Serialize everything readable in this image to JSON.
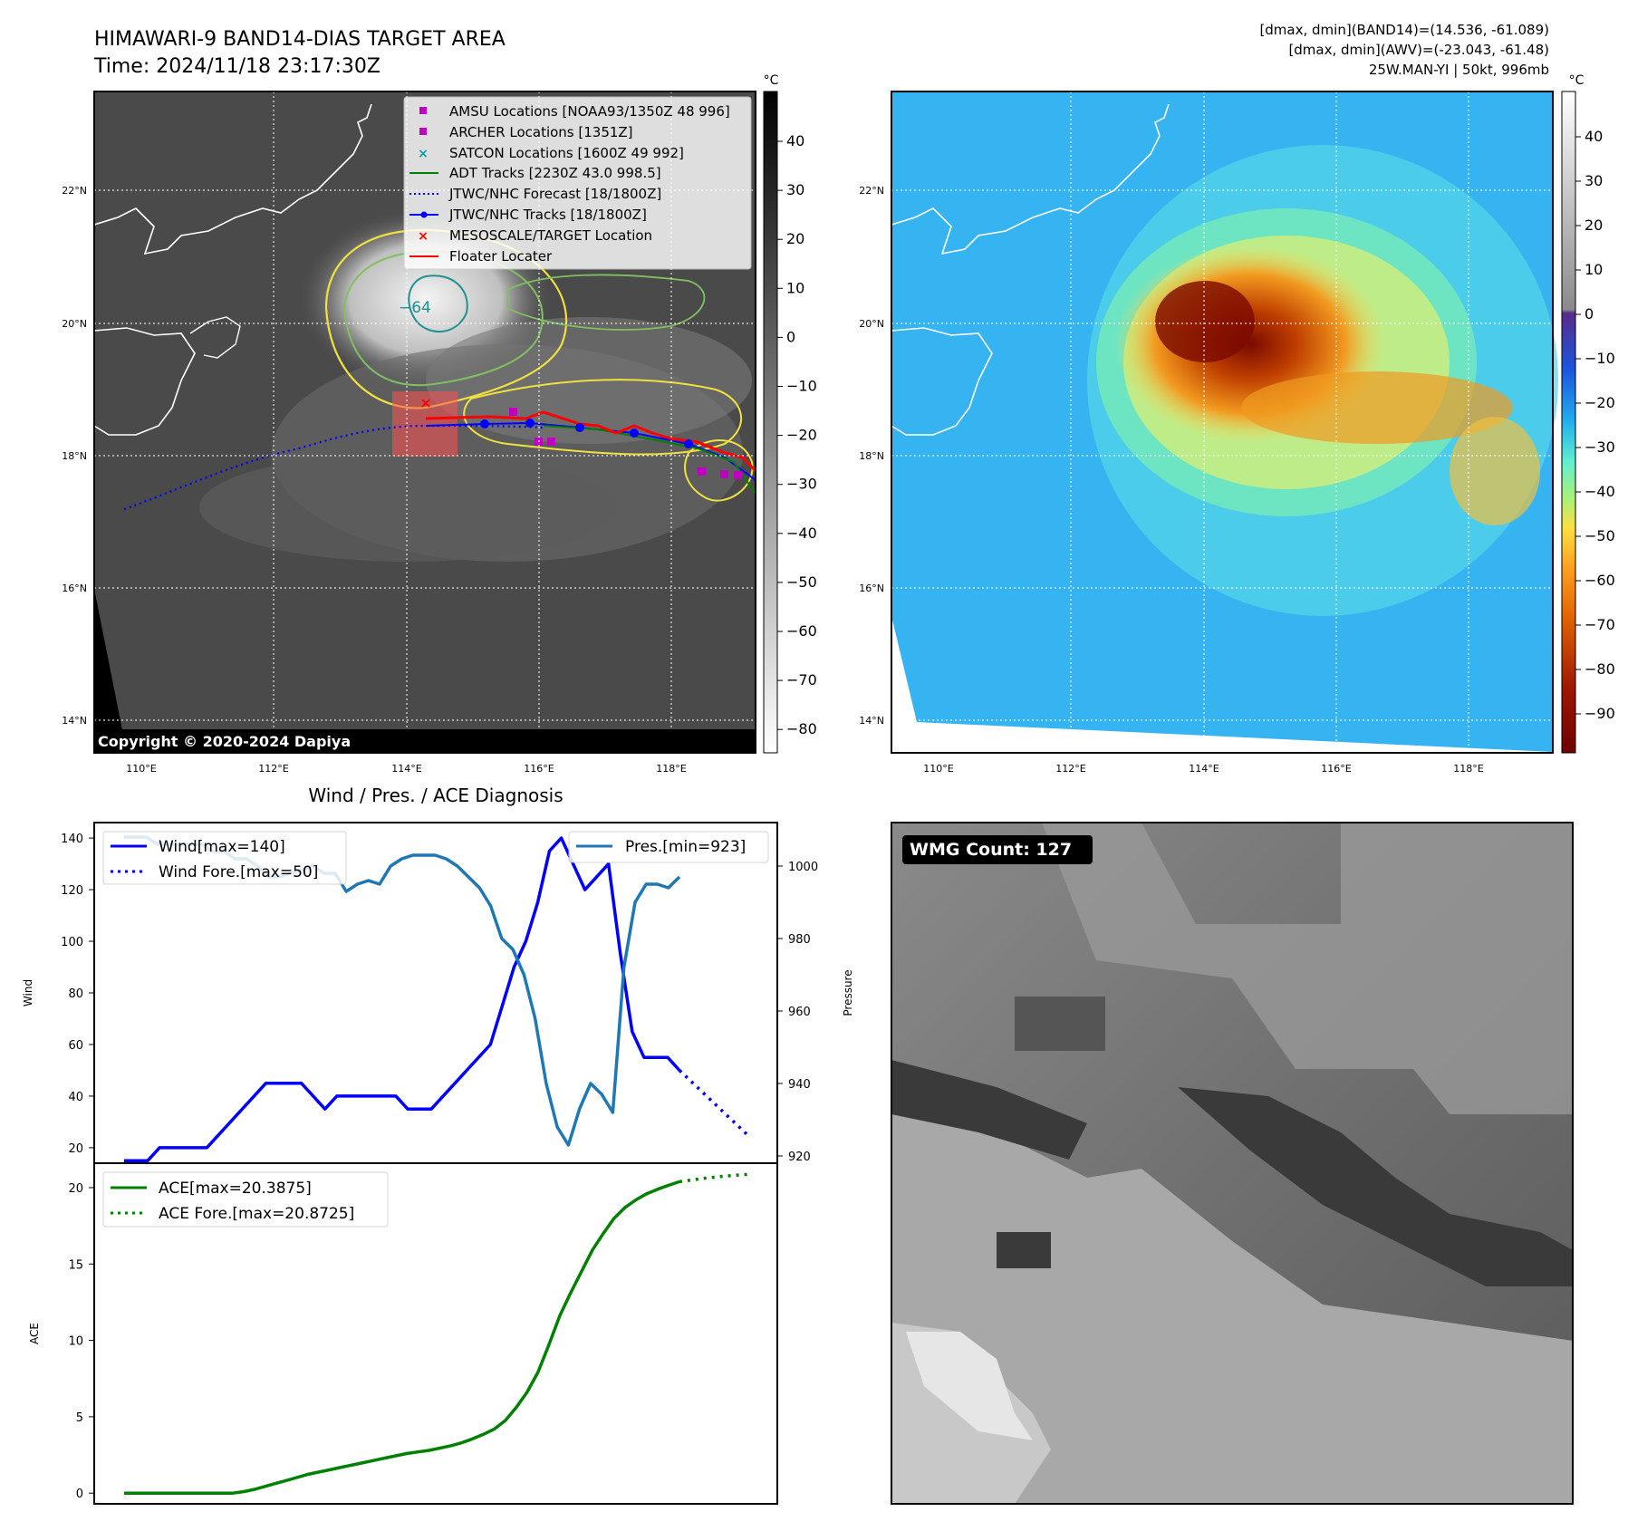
{
  "header": {
    "title_line1": "HIMAWARI-9 BAND14-DIAS TARGET AREA",
    "title_line2": "Time: 2024/11/18 23:17:30Z",
    "info_line1": "[dmax, dmin](BAND14)=(14.536, -61.089)",
    "info_line2": "[dmax, dmin](AWV)=(-23.043, -61.48)",
    "info_line3": "25W.MAN-YI | 50kt, 996mb"
  },
  "map_left": {
    "copyright": "Copyright © 2020-2024 Dapiya",
    "contour_label": "−64",
    "cbar_unit": "°C",
    "cbar_ticks": [
      "40",
      "30",
      "20",
      "10",
      "0",
      "−10",
      "−20",
      "−30",
      "−40",
      "−50",
      "−60",
      "−70",
      "−80"
    ],
    "legend": [
      {
        "label": "AMSU Locations [NOAA93/1350Z 48 996]",
        "marker": "square",
        "color": "#c000c0"
      },
      {
        "label": "ARCHER Locations [1351Z]",
        "marker": "square",
        "color": "#c000c0"
      },
      {
        "label": "SATCON Locations [1600Z 49 992]",
        "marker": "x",
        "color": "#00a0a0"
      },
      {
        "label": "ADT Tracks [2230Z 43.0 998.5]",
        "marker": "line",
        "color": "#008000"
      },
      {
        "label": "JTWC/NHC Forecast [18/1800Z]",
        "marker": "dotted",
        "color": "#0000ff"
      },
      {
        "label": "JTWC/NHC Tracks [18/1800Z]",
        "marker": "line-dot",
        "color": "#0000ff"
      },
      {
        "label": "MESOSCALE/TARGET Location",
        "marker": "x",
        "color": "#ff0000"
      },
      {
        "label": "Floater Locater",
        "marker": "line",
        "color": "#ff0000"
      }
    ]
  },
  "map_right": {
    "cbar_unit": "°C",
    "cbar_ticks": [
      "40",
      "30",
      "20",
      "10",
      "0",
      "−10",
      "−20",
      "−30",
      "−40",
      "−50",
      "−60",
      "−70",
      "−80",
      "−90"
    ]
  },
  "map_axes": {
    "lat_labels": [
      "22°N",
      "20°N",
      "18°N",
      "16°N",
      "14°N"
    ],
    "lon_labels": [
      "110°E",
      "112°E",
      "114°E",
      "116°E",
      "118°E"
    ]
  },
  "wind_panel": {
    "title": "Wind / Pres. / ACE Diagnosis",
    "ylabel_left": "Wind",
    "ylabel_right": "Pressure",
    "left_ticks": [
      "140",
      "120",
      "100",
      "80",
      "60",
      "40",
      "20"
    ],
    "right_ticks": [
      "1000",
      "980",
      "960",
      "940",
      "920"
    ],
    "legend_wind": "Wind[max=140]",
    "legend_wind_fore": "Wind Fore.[max=50]",
    "legend_pres": "Pres.[min=923]"
  },
  "ace_panel": {
    "ylabel": "ACE",
    "ticks": [
      "20",
      "15",
      "10",
      "5",
      "0"
    ],
    "legend_ace": "ACE[max=20.3875]",
    "legend_ace_fore": "ACE Fore.[max=20.8725]"
  },
  "wmg_panel": {
    "label": "WMG Count: 127"
  },
  "chart_data": [
    {
      "type": "line",
      "title": "Wind / Pres. / ACE Diagnosis",
      "ylabel": "Wind",
      "ylim": [
        14,
        146
      ],
      "series": [
        {
          "name": "Wind[max=140]",
          "color": "#0000ff",
          "values": [
            15,
            15,
            15,
            20,
            20,
            20,
            20,
            20,
            25,
            30,
            35,
            40,
            45,
            45,
            45,
            45,
            40,
            35,
            40,
            40,
            40,
            40,
            40,
            40,
            35,
            35,
            35,
            40,
            45,
            50,
            55,
            60,
            75,
            90,
            100,
            115,
            135,
            140,
            130,
            120,
            125,
            130,
            95,
            65,
            55,
            55,
            55,
            50
          ]
        },
        {
          "name": "Wind Fore.[max=50]",
          "color": "#0000ff",
          "style": "dotted",
          "values": [
            50,
            45,
            40,
            35,
            30,
            25
          ]
        }
      ]
    },
    {
      "type": "line",
      "ylabel": "Pressure",
      "ylim": [
        918,
        1012
      ],
      "series": [
        {
          "name": "Pres.[min=923]",
          "color": "#1f77b4",
          "values": [
            1008,
            1008,
            1008,
            1006,
            1006,
            1006,
            1006,
            1006,
            1004,
            1004,
            1002,
            1002,
            1000,
            997,
            997,
            998,
            999,
            1000,
            998,
            998,
            993,
            995,
            996,
            995,
            1000,
            1002,
            1003,
            1003,
            1003,
            1002,
            1000,
            997,
            994,
            989,
            980,
            977,
            970,
            958,
            940,
            928,
            923,
            933,
            940,
            937,
            932,
            972,
            990,
            995,
            995,
            994,
            997
          ]
        }
      ]
    },
    {
      "type": "line",
      "ylabel": "ACE",
      "ylim": [
        -0.7,
        21.6
      ],
      "series": [
        {
          "name": "ACE[max=20.3875]",
          "color": "#008000",
          "values": [
            0,
            0,
            0,
            0,
            0,
            0,
            0,
            0,
            0,
            0,
            0,
            0.1,
            0.25,
            0.45,
            0.65,
            0.85,
            1.05,
            1.25,
            1.4,
            1.55,
            1.7,
            1.85,
            2.0,
            2.15,
            2.3,
            2.45,
            2.6,
            2.7,
            2.8,
            2.95,
            3.1,
            3.3,
            3.55,
            3.85,
            4.2,
            4.75,
            5.6,
            6.6,
            7.9,
            9.7,
            11.6,
            13.1,
            14.5,
            15.9,
            17.0,
            18.0,
            18.7,
            19.2,
            19.6,
            19.9,
            20.15,
            20.3875
          ]
        },
        {
          "name": "ACE Fore.[max=20.8725]",
          "color": "#008000",
          "style": "dotted",
          "values": [
            20.3875,
            20.6,
            20.75,
            20.8725
          ]
        }
      ]
    }
  ]
}
